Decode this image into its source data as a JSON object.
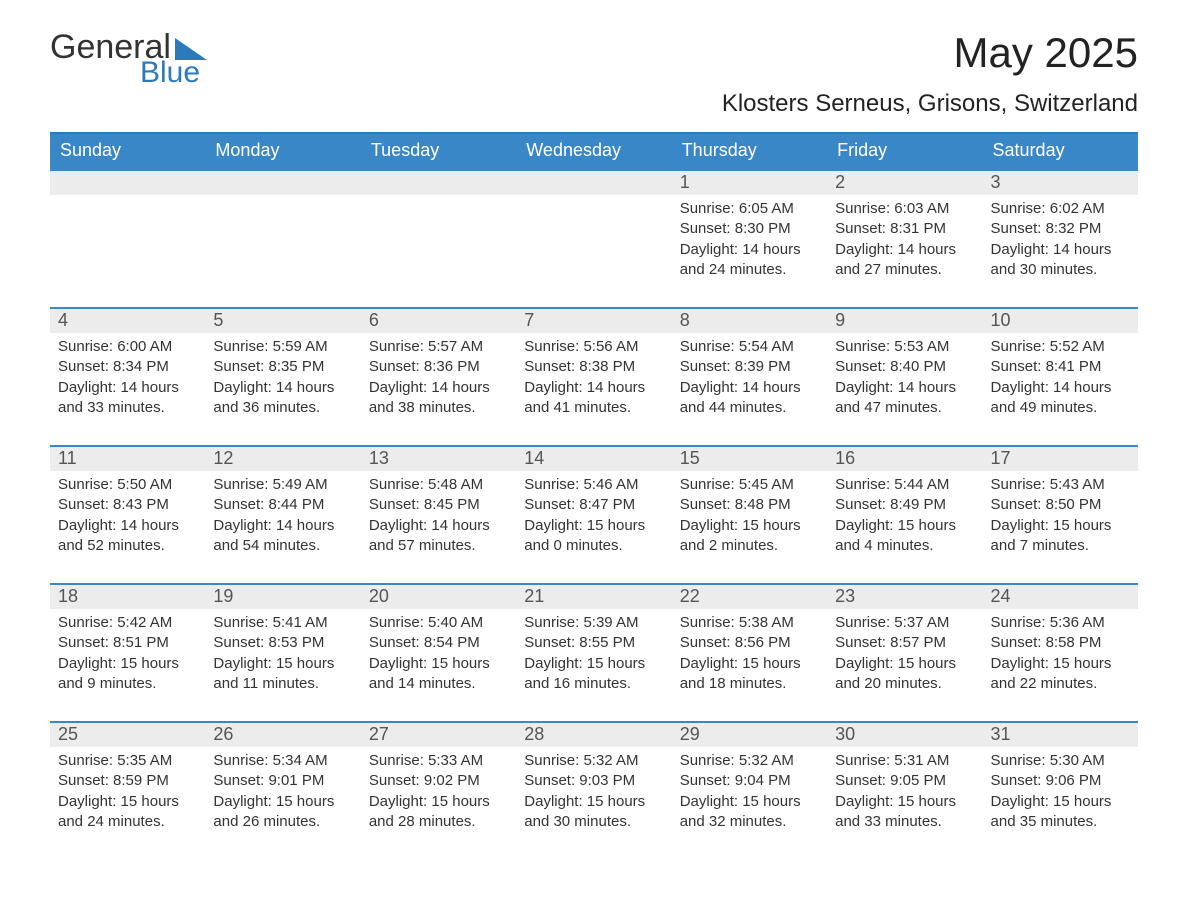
{
  "logo": {
    "word1": "General",
    "word2": "Blue",
    "accent_color": "#2b7bbc"
  },
  "title": {
    "month": "May 2025",
    "location": "Klosters Serneus, Grisons, Switzerland"
  },
  "colors": {
    "header_bg": "#3a87c8",
    "header_text": "#ffffff",
    "row_border": "#3a87c8",
    "daynum_bg": "#ececec",
    "daynum_text": "#555555",
    "body_text": "#333333",
    "page_bg": "#ffffff"
  },
  "days_of_week": [
    "Sunday",
    "Monday",
    "Tuesday",
    "Wednesday",
    "Thursday",
    "Friday",
    "Saturday"
  ],
  "weeks": [
    [
      {
        "n": "",
        "sunrise": "",
        "sunset": "",
        "daylight": ""
      },
      {
        "n": "",
        "sunrise": "",
        "sunset": "",
        "daylight": ""
      },
      {
        "n": "",
        "sunrise": "",
        "sunset": "",
        "daylight": ""
      },
      {
        "n": "",
        "sunrise": "",
        "sunset": "",
        "daylight": ""
      },
      {
        "n": "1",
        "sunrise": "6:05 AM",
        "sunset": "8:30 PM",
        "daylight": "14 hours and 24 minutes."
      },
      {
        "n": "2",
        "sunrise": "6:03 AM",
        "sunset": "8:31 PM",
        "daylight": "14 hours and 27 minutes."
      },
      {
        "n": "3",
        "sunrise": "6:02 AM",
        "sunset": "8:32 PM",
        "daylight": "14 hours and 30 minutes."
      }
    ],
    [
      {
        "n": "4",
        "sunrise": "6:00 AM",
        "sunset": "8:34 PM",
        "daylight": "14 hours and 33 minutes."
      },
      {
        "n": "5",
        "sunrise": "5:59 AM",
        "sunset": "8:35 PM",
        "daylight": "14 hours and 36 minutes."
      },
      {
        "n": "6",
        "sunrise": "5:57 AM",
        "sunset": "8:36 PM",
        "daylight": "14 hours and 38 minutes."
      },
      {
        "n": "7",
        "sunrise": "5:56 AM",
        "sunset": "8:38 PM",
        "daylight": "14 hours and 41 minutes."
      },
      {
        "n": "8",
        "sunrise": "5:54 AM",
        "sunset": "8:39 PM",
        "daylight": "14 hours and 44 minutes."
      },
      {
        "n": "9",
        "sunrise": "5:53 AM",
        "sunset": "8:40 PM",
        "daylight": "14 hours and 47 minutes."
      },
      {
        "n": "10",
        "sunrise": "5:52 AM",
        "sunset": "8:41 PM",
        "daylight": "14 hours and 49 minutes."
      }
    ],
    [
      {
        "n": "11",
        "sunrise": "5:50 AM",
        "sunset": "8:43 PM",
        "daylight": "14 hours and 52 minutes."
      },
      {
        "n": "12",
        "sunrise": "5:49 AM",
        "sunset": "8:44 PM",
        "daylight": "14 hours and 54 minutes."
      },
      {
        "n": "13",
        "sunrise": "5:48 AM",
        "sunset": "8:45 PM",
        "daylight": "14 hours and 57 minutes."
      },
      {
        "n": "14",
        "sunrise": "5:46 AM",
        "sunset": "8:47 PM",
        "daylight": "15 hours and 0 minutes."
      },
      {
        "n": "15",
        "sunrise": "5:45 AM",
        "sunset": "8:48 PM",
        "daylight": "15 hours and 2 minutes."
      },
      {
        "n": "16",
        "sunrise": "5:44 AM",
        "sunset": "8:49 PM",
        "daylight": "15 hours and 4 minutes."
      },
      {
        "n": "17",
        "sunrise": "5:43 AM",
        "sunset": "8:50 PM",
        "daylight": "15 hours and 7 minutes."
      }
    ],
    [
      {
        "n": "18",
        "sunrise": "5:42 AM",
        "sunset": "8:51 PM",
        "daylight": "15 hours and 9 minutes."
      },
      {
        "n": "19",
        "sunrise": "5:41 AM",
        "sunset": "8:53 PM",
        "daylight": "15 hours and 11 minutes."
      },
      {
        "n": "20",
        "sunrise": "5:40 AM",
        "sunset": "8:54 PM",
        "daylight": "15 hours and 14 minutes."
      },
      {
        "n": "21",
        "sunrise": "5:39 AM",
        "sunset": "8:55 PM",
        "daylight": "15 hours and 16 minutes."
      },
      {
        "n": "22",
        "sunrise": "5:38 AM",
        "sunset": "8:56 PM",
        "daylight": "15 hours and 18 minutes."
      },
      {
        "n": "23",
        "sunrise": "5:37 AM",
        "sunset": "8:57 PM",
        "daylight": "15 hours and 20 minutes."
      },
      {
        "n": "24",
        "sunrise": "5:36 AM",
        "sunset": "8:58 PM",
        "daylight": "15 hours and 22 minutes."
      }
    ],
    [
      {
        "n": "25",
        "sunrise": "5:35 AM",
        "sunset": "8:59 PM",
        "daylight": "15 hours and 24 minutes."
      },
      {
        "n": "26",
        "sunrise": "5:34 AM",
        "sunset": "9:01 PM",
        "daylight": "15 hours and 26 minutes."
      },
      {
        "n": "27",
        "sunrise": "5:33 AM",
        "sunset": "9:02 PM",
        "daylight": "15 hours and 28 minutes."
      },
      {
        "n": "28",
        "sunrise": "5:32 AM",
        "sunset": "9:03 PM",
        "daylight": "15 hours and 30 minutes."
      },
      {
        "n": "29",
        "sunrise": "5:32 AM",
        "sunset": "9:04 PM",
        "daylight": "15 hours and 32 minutes."
      },
      {
        "n": "30",
        "sunrise": "5:31 AM",
        "sunset": "9:05 PM",
        "daylight": "15 hours and 33 minutes."
      },
      {
        "n": "31",
        "sunrise": "5:30 AM",
        "sunset": "9:06 PM",
        "daylight": "15 hours and 35 minutes."
      }
    ]
  ],
  "labels": {
    "sunrise": "Sunrise:",
    "sunset": "Sunset:",
    "daylight": "Daylight:"
  }
}
